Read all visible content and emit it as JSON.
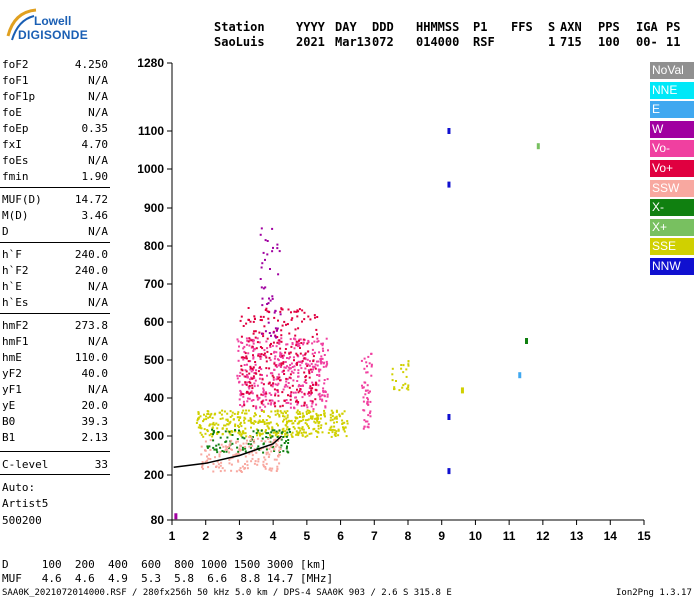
{
  "logo": {
    "line1": "Lowell",
    "line2": "DIGISONDE"
  },
  "header": {
    "row1": [
      "Station",
      "YYYY",
      "DAY",
      "DDD",
      "HHMMSS",
      "P1",
      "FFS",
      "S",
      "AXN",
      "PPS",
      "IGA",
      "PS"
    ],
    "row2": [
      "SaoLuis",
      "2021",
      "Mar13",
      "072",
      "014000",
      "RSF",
      "",
      "1",
      "715",
      "100",
      "00-",
      "11"
    ]
  },
  "params": [
    {
      "label": "foF2",
      "value": "4.250"
    },
    {
      "label": "foF1",
      "value": "N/A"
    },
    {
      "label": "foF1p",
      "value": "N/A"
    },
    {
      "label": "foE",
      "value": "N/A"
    },
    {
      "label": "foEp",
      "value": "0.35"
    },
    {
      "label": "fxI",
      "value": "4.70"
    },
    {
      "label": "foEs",
      "value": "N/A"
    },
    {
      "label": "fmin",
      "value": "1.90"
    },
    {
      "label": "MUF(D)",
      "value": "14.72"
    },
    {
      "label": "M(D)",
      "value": "3.46"
    },
    {
      "label": "D",
      "value": "N/A"
    },
    {
      "label": "h`F",
      "value": "240.0"
    },
    {
      "label": "h`F2",
      "value": "240.0"
    },
    {
      "label": "h`E",
      "value": "N/A"
    },
    {
      "label": "h`Es",
      "value": "N/A"
    },
    {
      "label": "hmF2",
      "value": "273.8"
    },
    {
      "label": "hmF1",
      "value": "N/A"
    },
    {
      "label": "hmE",
      "value": "110.0"
    },
    {
      "label": "yF2",
      "value": "40.0"
    },
    {
      "label": "yF1",
      "value": "N/A"
    },
    {
      "label": "yE",
      "value": "20.0"
    },
    {
      "label": "B0",
      "value": "39.3"
    },
    {
      "label": "B1",
      "value": "2.13"
    },
    {
      "label": "C-level",
      "value": "33"
    }
  ],
  "auto": {
    "l1": "Auto:",
    "l2": "Artist5",
    "l3": "500200"
  },
  "legend": [
    {
      "label": "NoVal",
      "color": "#909090"
    },
    {
      "label": "NNE",
      "color": "#00e8f8"
    },
    {
      "label": "E",
      "color": "#40a8f0"
    },
    {
      "label": "W",
      "color": "#a000a0"
    },
    {
      "label": "Vo-",
      "color": "#f040a0"
    },
    {
      "label": "Vo+",
      "color": "#e00040"
    },
    {
      "label": "SSW",
      "color": "#f8a8a0"
    },
    {
      "label": "X-",
      "color": "#108010"
    },
    {
      "label": "X+",
      "color": "#78c060"
    },
    {
      "label": "SSE",
      "color": "#d0d000"
    },
    {
      "label": "NNW",
      "color": "#1010d0"
    }
  ],
  "bottom": {
    "d_row": "D     100  200  400  600  800 1000 1500 3000 [km]",
    "muf_row": "MUF   4.6  4.6  4.9  5.3  5.8  6.6  8.8 14.7 [MHz]"
  },
  "footer": {
    "left": "SAA0K_2021072014000.RSF / 280fx256h 50 kHz 5.0 km / DPS-4 SAA0K 903 / 2.6 S 315.8 E",
    "right": "Ion2Png 1.3.17"
  },
  "chart_data": {
    "type": "scatter",
    "xlabel": "",
    "ylabel": "",
    "xlim": [
      1,
      15
    ],
    "ylim": [
      80,
      1280
    ],
    "x_ticks": [
      1,
      2,
      3,
      4,
      5,
      6,
      7,
      8,
      9,
      10,
      11,
      12,
      13,
      14,
      15
    ],
    "y_ticks": [
      80,
      200,
      300,
      400,
      500,
      600,
      700,
      800,
      900,
      1000,
      1100,
      1280
    ],
    "trace": [
      [
        1.05,
        220
      ],
      [
        2.0,
        230
      ],
      [
        3.0,
        250
      ],
      [
        4.0,
        280
      ],
      [
        4.25,
        300
      ]
    ],
    "echo_regions": [
      {
        "name": "SSE",
        "color": "#d0d000",
        "x": [
          1.7,
          6.2
        ],
        "y": [
          300,
          370
        ],
        "density": 0.6
      },
      {
        "name": "Vo-",
        "color": "#f040a0",
        "x": [
          2.9,
          5.6
        ],
        "y": [
          370,
          560
        ],
        "density": 0.35
      },
      {
        "name": "Vo+",
        "color": "#e00040",
        "x": [
          3.0,
          5.3
        ],
        "y": [
          380,
          640
        ],
        "density": 0.2
      },
      {
        "name": "W",
        "color": "#a000a0",
        "x": [
          3.6,
          4.2
        ],
        "y": [
          560,
          850
        ],
        "density": 0.12
      },
      {
        "name": "X-",
        "color": "#108010",
        "x": [
          2.0,
          4.5
        ],
        "y": [
          260,
          320
        ],
        "density": 0.3
      },
      {
        "name": "SSW",
        "color": "#f8a8a0",
        "x": [
          1.8,
          4.2
        ],
        "y": [
          210,
          300
        ],
        "density": 0.35
      },
      {
        "name": "SSE",
        "color": "#d0d000",
        "x": [
          7.5,
          8.0
        ],
        "y": [
          420,
          500
        ],
        "density": 0.3
      },
      {
        "name": "Vo-",
        "color": "#f040a0",
        "x": [
          6.6,
          6.9
        ],
        "y": [
          320,
          520
        ],
        "density": 0.4
      }
    ],
    "isolated_points": [
      {
        "x": 9.2,
        "y": 1100,
        "color": "#1010d0"
      },
      {
        "x": 9.2,
        "y": 960,
        "color": "#1010d0"
      },
      {
        "x": 9.2,
        "y": 210,
        "color": "#1010d0"
      },
      {
        "x": 9.2,
        "y": 350,
        "color": "#1010d0"
      },
      {
        "x": 11.85,
        "y": 1060,
        "color": "#78c060"
      },
      {
        "x": 11.5,
        "y": 550,
        "color": "#108010"
      },
      {
        "x": 11.3,
        "y": 460,
        "color": "#40a8f0"
      },
      {
        "x": 9.6,
        "y": 420,
        "color": "#d0d000"
      },
      {
        "x": 1.1,
        "y": 90,
        "color": "#a000a0"
      }
    ]
  }
}
